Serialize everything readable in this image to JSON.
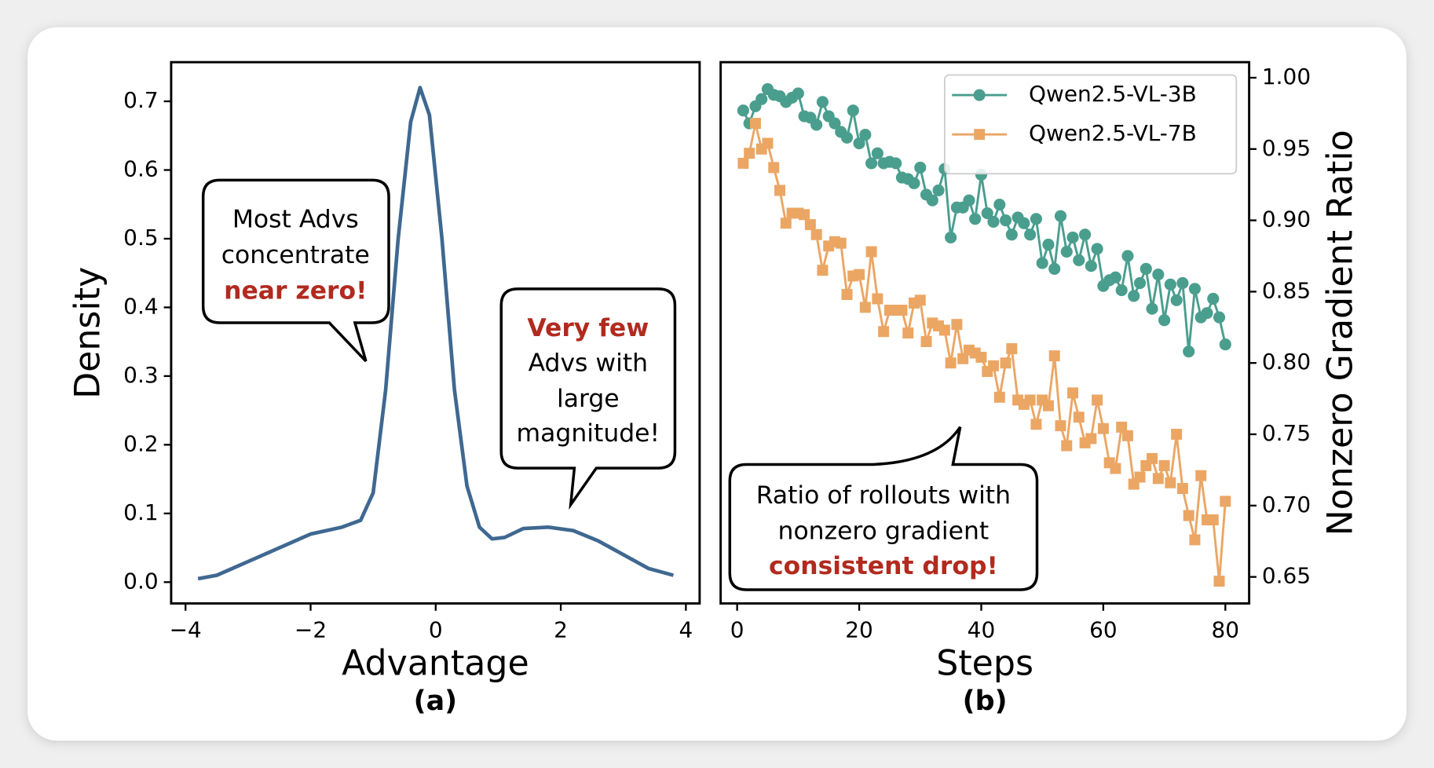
{
  "chart_data": [
    {
      "type": "line",
      "caption": "(a)",
      "x_label": "Advantage",
      "y_label": "Density",
      "y_axis_side": "left",
      "x": [
        -3.8,
        -3.5,
        -3.0,
        -2.5,
        -2.0,
        -1.5,
        -1.2,
        -1.0,
        -0.8,
        -0.6,
        -0.4,
        -0.25,
        -0.1,
        0.1,
        0.3,
        0.5,
        0.7,
        0.9,
        1.1,
        1.4,
        1.8,
        2.2,
        2.6,
        3.0,
        3.4,
        3.8
      ],
      "series": [
        {
          "color": "#3f6891",
          "values": [
            0.005,
            0.01,
            0.03,
            0.05,
            0.07,
            0.08,
            0.09,
            0.13,
            0.28,
            0.5,
            0.67,
            0.72,
            0.68,
            0.5,
            0.28,
            0.14,
            0.08,
            0.063,
            0.065,
            0.078,
            0.08,
            0.075,
            0.06,
            0.04,
            0.02,
            0.01
          ]
        }
      ],
      "xlim": [
        -4.23,
        4.22
      ],
      "ylim": [
        -0.031,
        0.757
      ],
      "xticks": [
        {
          "value": -4,
          "label": "−4"
        },
        {
          "value": -2,
          "label": "−2"
        },
        0,
        2,
        4
      ],
      "yticks": [
        {
          "value": 0,
          "label": "0.0"
        },
        0.1,
        0.2,
        0.3,
        0.4,
        0.5,
        0.6,
        0.7
      ],
      "annotations": [
        {
          "lines": [
            {
              "text": "Most Advs",
              "color": "#000000"
            },
            {
              "text": "concentrate",
              "color": "#000000"
            },
            {
              "text": "near zero!",
              "color": "#b22a1e"
            }
          ]
        },
        {
          "lines": [
            {
              "text": "Very few",
              "color": "#b22a1e"
            },
            {
              "text": "Advs with",
              "color": "#000000"
            },
            {
              "text": "large",
              "color": "#000000"
            },
            {
              "text": "magnitude!",
              "color": "#000000"
            }
          ]
        }
      ]
    },
    {
      "type": "line",
      "caption": "(b)",
      "x_label": "Steps",
      "y_label": "Nonzero Gradient Ratio",
      "y_axis_side": "right",
      "legend": "upper right",
      "x": [
        1,
        2,
        3,
        4,
        5,
        6,
        7,
        8,
        9,
        10,
        11,
        12,
        13,
        14,
        15,
        16,
        17,
        18,
        19,
        20,
        21,
        22,
        23,
        24,
        25,
        26,
        27,
        28,
        29,
        30,
        31,
        32,
        33,
        34,
        35,
        36,
        37,
        38,
        39,
        40,
        41,
        42,
        43,
        44,
        45,
        46,
        47,
        48,
        49,
        50,
        51,
        52,
        53,
        54,
        55,
        56,
        57,
        58,
        59,
        60,
        61,
        62,
        63,
        64,
        65,
        66,
        67,
        68,
        69,
        70,
        71,
        72,
        73,
        74,
        75,
        76,
        77,
        78,
        79,
        80
      ],
      "series": [
        {
          "name": "Qwen2.5-VL-3B",
          "color": "#4a9e8e",
          "marker": "circle",
          "values": [
            0.977,
            0.968,
            0.98,
            0.985,
            0.992,
            0.988,
            0.987,
            0.983,
            0.986,
            0.989,
            0.973,
            0.972,
            0.967,
            0.983,
            0.973,
            0.968,
            0.962,
            0.958,
            0.977,
            0.954,
            0.96,
            0.94,
            0.947,
            0.94,
            0.941,
            0.94,
            0.93,
            0.929,
            0.926,
            0.937,
            0.918,
            0.914,
            0.921,
            0.936,
            0.888,
            0.909,
            0.909,
            0.914,
            0.901,
            0.932,
            0.905,
            0.899,
            0.911,
            0.9,
            0.89,
            0.902,
            0.898,
            0.89,
            0.901,
            0.87,
            0.883,
            0.866,
            0.903,
            0.878,
            0.888,
            0.872,
            0.89,
            0.868,
            0.88,
            0.854,
            0.858,
            0.86,
            0.851,
            0.875,
            0.847,
            0.856,
            0.866,
            0.838,
            0.862,
            0.83,
            0.855,
            0.844,
            0.856,
            0.808,
            0.852,
            0.832,
            0.835,
            0.845,
            0.832,
            0.813
          ]
        },
        {
          "name": "Qwen2.5-VL-7B",
          "color": "#eba664",
          "marker": "square",
          "values": [
            0.94,
            0.947,
            0.968,
            0.95,
            0.954,
            0.937,
            0.921,
            0.898,
            0.905,
            0.905,
            0.904,
            0.897,
            0.89,
            0.865,
            0.882,
            0.885,
            0.884,
            0.848,
            0.861,
            0.862,
            0.839,
            0.878,
            0.845,
            0.822,
            0.837,
            0.837,
            0.837,
            0.821,
            0.842,
            0.844,
            0.815,
            0.828,
            0.826,
            0.823,
            0.8,
            0.827,
            0.803,
            0.809,
            0.807,
            0.804,
            0.794,
            0.798,
            0.776,
            0.8,
            0.81,
            0.774,
            0.771,
            0.774,
            0.757,
            0.774,
            0.77,
            0.805,
            0.756,
            0.742,
            0.779,
            0.762,
            0.744,
            0.747,
            0.774,
            0.754,
            0.73,
            0.726,
            0.755,
            0.749,
            0.715,
            0.72,
            0.728,
            0.733,
            0.719,
            0.728,
            0.716,
            0.75,
            0.712,
            0.693,
            0.676,
            0.721,
            0.69,
            0.69,
            0.647,
            0.703
          ]
        }
      ],
      "xlim": [
        -2.7,
        83.9
      ],
      "ylim": [
        0.6314,
        1.0109
      ],
      "xticks": [
        0,
        20,
        40,
        60,
        80
      ],
      "yticks": [
        {
          "value": 0.65,
          "label": "0.65"
        },
        {
          "value": 0.7,
          "label": "0.70"
        },
        0.75,
        {
          "value": 0.8,
          "label": "0.80"
        },
        0.85,
        {
          "value": 0.9,
          "label": "0.90"
        },
        0.95,
        {
          "value": 1.0,
          "label": "1.00"
        }
      ],
      "annotations": [
        {
          "lines": [
            {
              "text": "Ratio of rollouts with",
              "color": "#000000"
            },
            {
              "text": "nonzero gradient",
              "color": "#000000"
            },
            {
              "text": "consistent drop!",
              "color": "#b22a1e"
            }
          ]
        }
      ]
    }
  ]
}
